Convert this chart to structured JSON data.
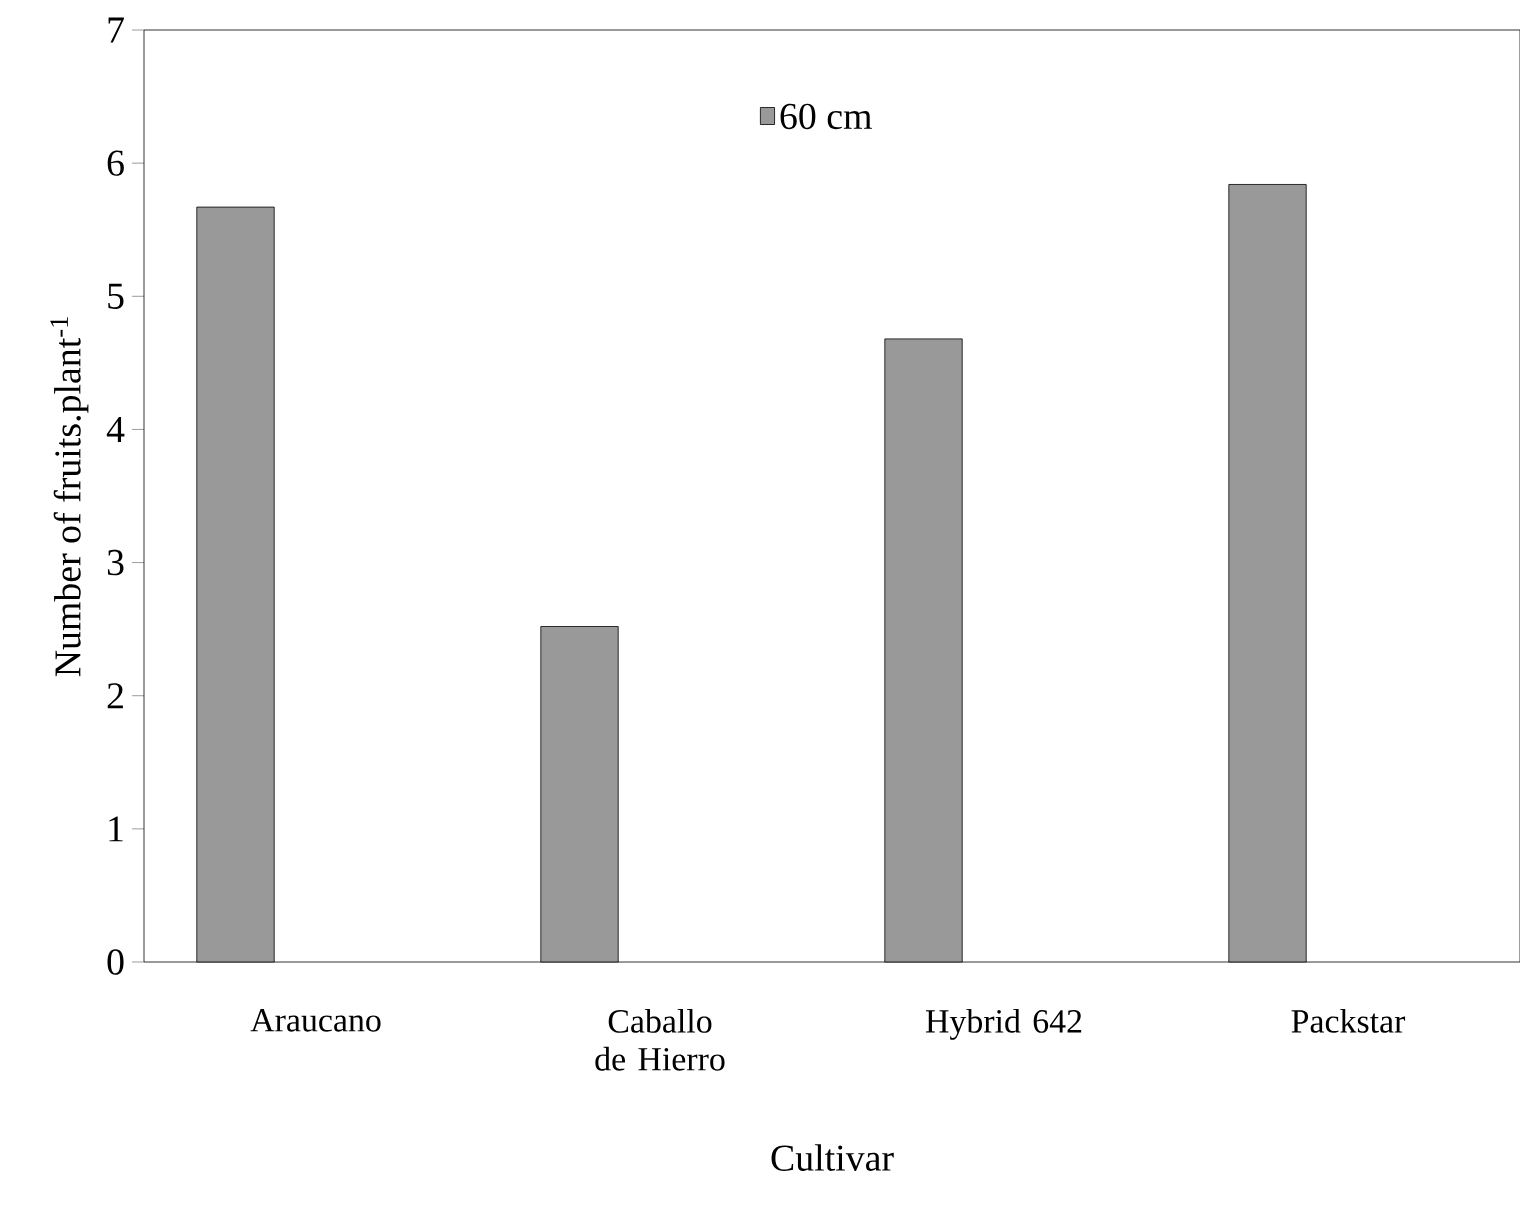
{
  "chart_data": {
    "type": "bar",
    "xlabel": "Cultivar",
    "ylabel": "Number of fruits.plant$^{-1}$",
    "categories": [
      "Araucano",
      "Caballo de Hierro",
      "Hybrid 642",
      "Packstar"
    ],
    "series": [
      {
        "name": "60 cm",
        "color": "#999999",
        "values": [
          5.67,
          2.52,
          4.68,
          5.84
        ]
      }
    ],
    "ylim": [
      0,
      7
    ],
    "yticks": [
      0,
      1,
      2,
      3,
      4,
      5,
      6,
      7
    ],
    "grid": false,
    "legend": "top"
  }
}
